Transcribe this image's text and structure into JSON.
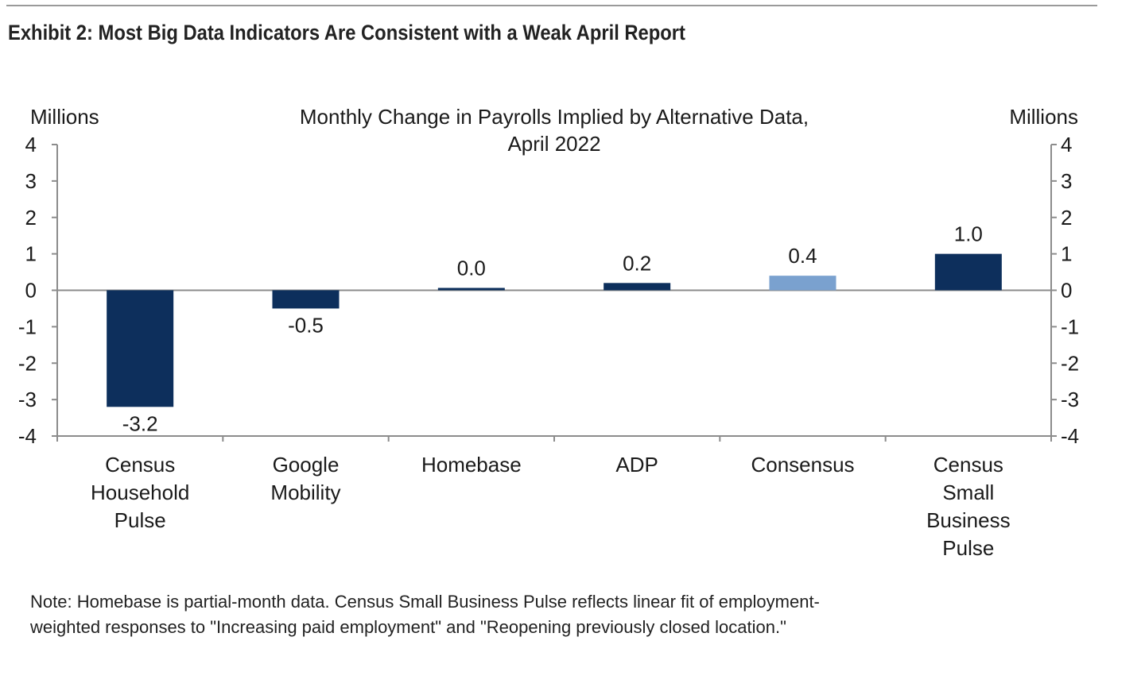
{
  "exhibit_title": "Exhibit 2: Most Big Data Indicators Are Consistent with a Weak April Report",
  "note_lines": [
    "Note: Homebase is partial-month data. Census Small Business Pulse reflects linear fit of employment-",
    "weighted responses to \"Increasing paid employment\" and \"Reopening previously closed location.\""
  ],
  "colors": {
    "primary_bar": "#0d2f5c",
    "highlight_bar": "#7aa1cf",
    "axis": "#8c8c8c"
  },
  "chart_data": {
    "type": "bar",
    "title_lines": [
      "Monthly Change in Payrolls Implied by Alternative Data,",
      "April 2022"
    ],
    "ylabel_left": "Millions",
    "ylabel_right": "Millions",
    "ylim": [
      -4,
      4
    ],
    "yticks": [
      "-4",
      "-3",
      "-2",
      "-1",
      "0",
      "1",
      "2",
      "3",
      "4"
    ],
    "categories": [
      [
        "Census",
        "Household",
        "Pulse"
      ],
      [
        "Google",
        "Mobility"
      ],
      [
        "Homebase"
      ],
      [
        "ADP"
      ],
      [
        "Consensus"
      ],
      [
        "Census",
        "Small",
        "Business",
        "Pulse"
      ]
    ],
    "values": [
      -3.2,
      -0.5,
      0.0,
      0.2,
      0.4,
      1.0
    ],
    "labels": [
      "-3.2",
      "-0.5",
      "0.0",
      "0.2",
      "0.4",
      "1.0"
    ],
    "highlight_index": 4,
    "grid": false,
    "legend": "none"
  }
}
